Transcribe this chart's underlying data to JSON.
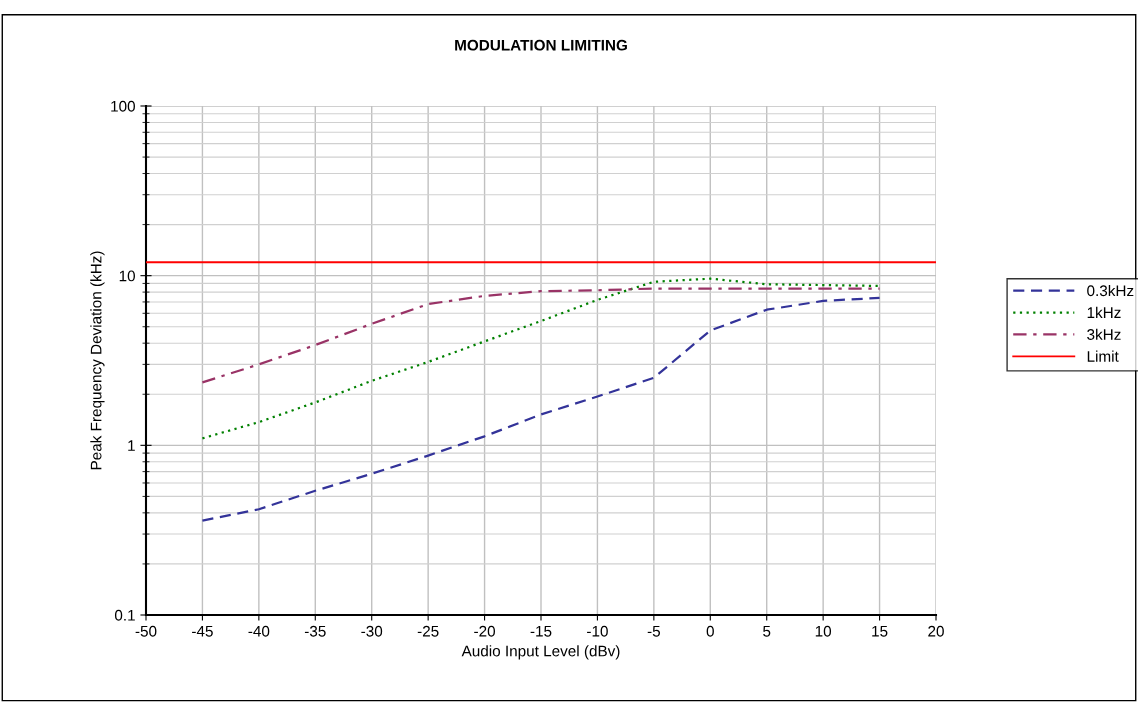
{
  "chart_data": {
    "type": "line",
    "title": "MODULATION LIMITING",
    "xlabel": "Audio Input Level (dBv)",
    "ylabel": "Peak Frequency Deviation (kHz)",
    "x": [
      -45,
      -40,
      -35,
      -30,
      -25,
      -20,
      -15,
      -10,
      -5,
      0,
      5,
      10,
      15
    ],
    "series": [
      {
        "name": "0.3kHz",
        "color": "#333399",
        "line_style": "dashed",
        "values": [
          0.36,
          0.42,
          0.54,
          0.68,
          0.87,
          1.13,
          1.52,
          1.94,
          2.5,
          4.75,
          6.3,
          7.1,
          7.4
        ]
      },
      {
        "name": "1kHz",
        "color": "#008000",
        "line_style": "dotted",
        "values": [
          1.1,
          1.37,
          1.79,
          2.4,
          3.1,
          4.1,
          5.4,
          7.2,
          9.2,
          9.6,
          8.9,
          8.8,
          8.7
        ]
      },
      {
        "name": "3kHz",
        "color": "#993366",
        "line_style": "dashdot",
        "values": [
          2.35,
          3.0,
          3.9,
          5.2,
          6.8,
          7.6,
          8.1,
          8.2,
          8.4,
          8.4,
          8.4,
          8.4,
          8.4
        ]
      },
      {
        "name": "Limit",
        "color": "#ff0000",
        "line_style": "solid",
        "x": [
          -50,
          20
        ],
        "values": [
          12,
          12
        ]
      }
    ],
    "log": "y",
    "xlim": [
      -50,
      20
    ],
    "xticks": [
      -50,
      -45,
      -40,
      -35,
      -30,
      -25,
      -20,
      -15,
      -10,
      -5,
      0,
      5,
      10,
      15,
      20
    ],
    "ylim": [
      0.1,
      100
    ],
    "yticks": [
      0.1,
      1,
      10,
      100
    ],
    "grid": true,
    "legend": "right",
    "marker": "none"
  }
}
